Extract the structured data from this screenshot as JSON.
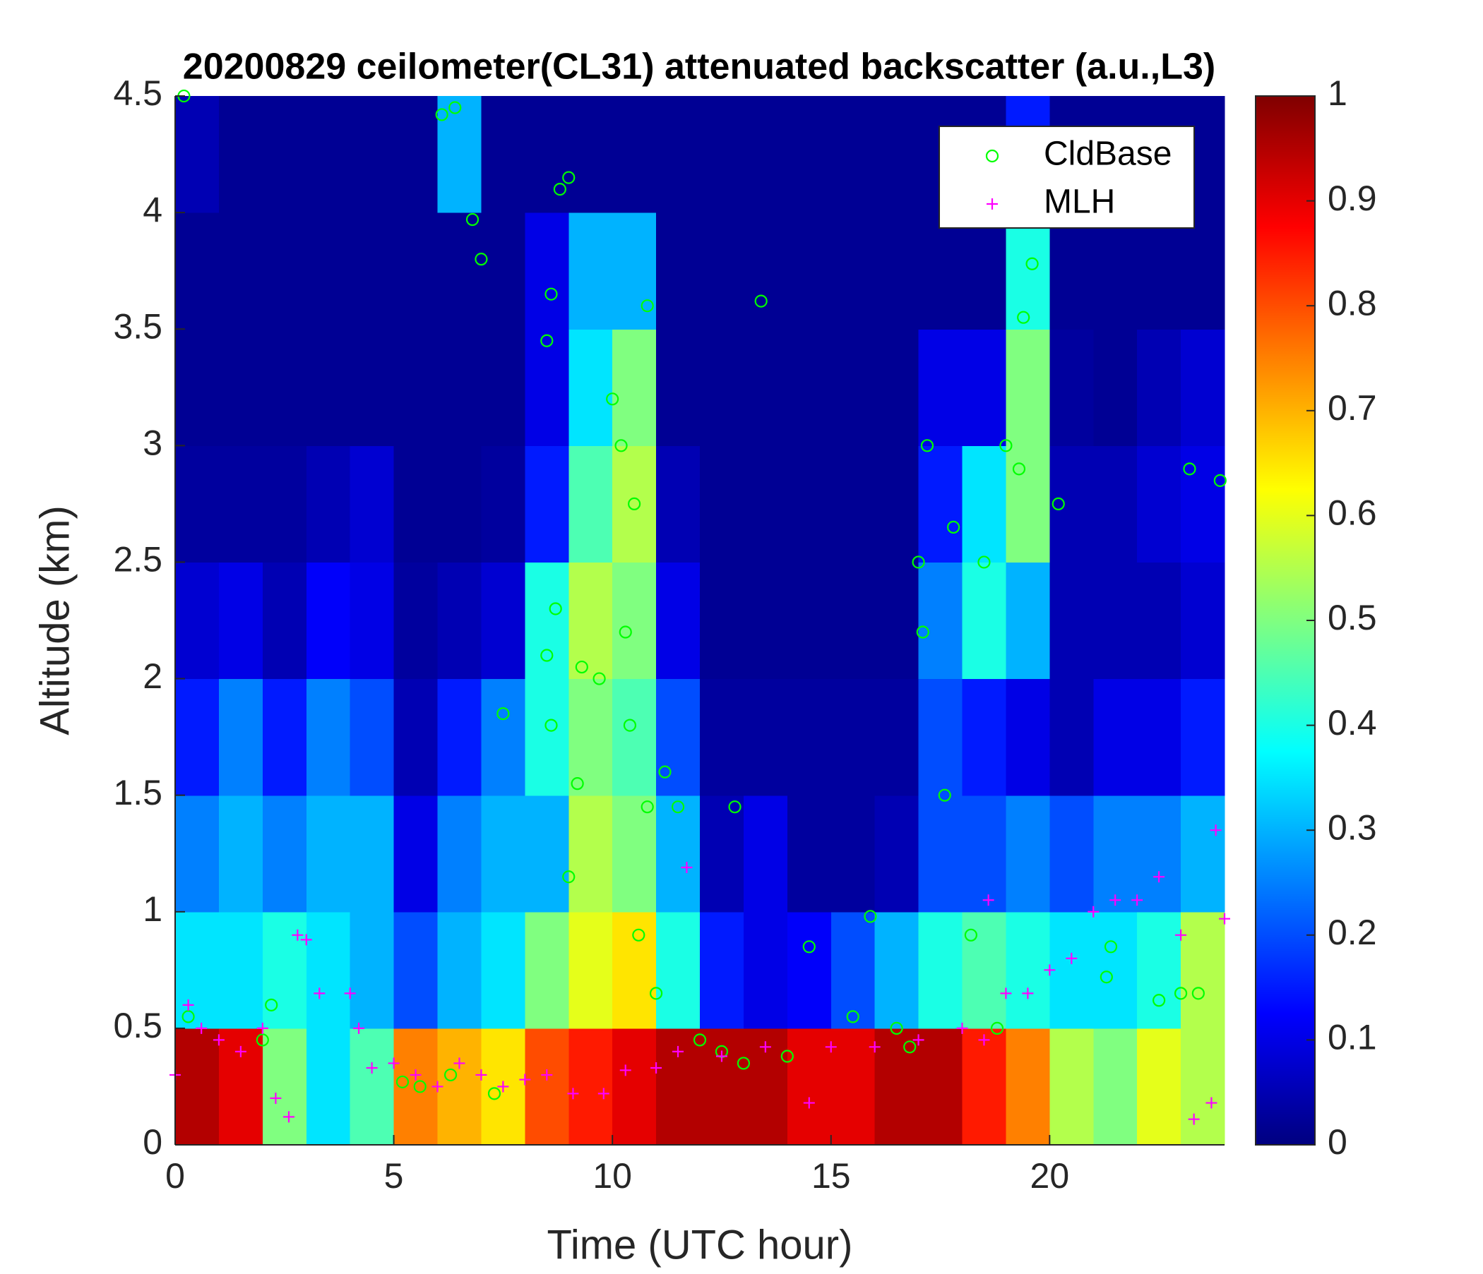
{
  "chart_data": {
    "type": "heatmap",
    "title": "20200829 ceilometer(CL31) attenuated backscatter (a.u.,L3)",
    "x_label": "Time (UTC hour)",
    "y_label": "Altitude (km)",
    "xlim": [
      0,
      24
    ],
    "xticks": [
      0,
      5,
      10,
      15,
      20
    ],
    "ylim": [
      0,
      4.5
    ],
    "yticks": [
      0,
      0.5,
      1,
      1.5,
      2,
      2.5,
      3,
      3.5,
      4,
      4.5
    ],
    "colormap": "jet",
    "clim": [
      0,
      1
    ],
    "cticks": [
      0,
      0.1,
      0.2,
      0.3,
      0.4,
      0.5,
      0.6,
      0.7,
      0.8,
      0.9,
      1
    ],
    "xbins": [
      0,
      1,
      2,
      3,
      4,
      5,
      6,
      7,
      8,
      9,
      10,
      11,
      12,
      13,
      14,
      15,
      16,
      17,
      18,
      19,
      20,
      21,
      22,
      23,
      24
    ],
    "ybins": [
      0,
      0.5,
      1,
      1.5,
      2,
      2.5,
      3,
      3.5,
      4,
      4.5
    ],
    "z": [
      [
        0.95,
        0.9,
        0.5,
        0.35,
        0.45,
        0.75,
        0.7,
        0.65,
        0.8,
        0.85,
        0.9,
        0.95,
        0.95,
        0.95,
        0.9,
        0.9,
        0.95,
        0.95,
        0.85,
        0.75,
        0.55,
        0.5,
        0.6,
        0.55
      ],
      [
        0.35,
        0.35,
        0.4,
        0.35,
        0.3,
        0.2,
        0.3,
        0.35,
        0.5,
        0.6,
        0.65,
        0.4,
        0.15,
        0.1,
        0.12,
        0.2,
        0.3,
        0.4,
        0.45,
        0.4,
        0.35,
        0.35,
        0.4,
        0.55
      ],
      [
        0.25,
        0.3,
        0.25,
        0.3,
        0.3,
        0.1,
        0.25,
        0.3,
        0.3,
        0.55,
        0.5,
        0.3,
        0.05,
        0.1,
        0.03,
        0.03,
        0.05,
        0.2,
        0.2,
        0.25,
        0.2,
        0.25,
        0.25,
        0.3
      ],
      [
        0.15,
        0.25,
        0.15,
        0.25,
        0.2,
        0.05,
        0.15,
        0.25,
        0.4,
        0.5,
        0.45,
        0.2,
        0.03,
        0.03,
        0.03,
        0.03,
        0.03,
        0.2,
        0.15,
        0.1,
        0.05,
        0.1,
        0.1,
        0.15
      ],
      [
        0.08,
        0.1,
        0.05,
        0.12,
        0.1,
        0.03,
        0.05,
        0.08,
        0.4,
        0.55,
        0.5,
        0.1,
        0.02,
        0.02,
        0.02,
        0.02,
        0.02,
        0.25,
        0.4,
        0.3,
        0.05,
        0.05,
        0.05,
        0.08
      ],
      [
        0.03,
        0.03,
        0.03,
        0.05,
        0.08,
        0.02,
        0.02,
        0.03,
        0.15,
        0.45,
        0.55,
        0.05,
        0.02,
        0.02,
        0.02,
        0.02,
        0.02,
        0.15,
        0.35,
        0.5,
        0.05,
        0.05,
        0.08,
        0.1
      ],
      [
        0.02,
        0.02,
        0.02,
        0.02,
        0.02,
        0.02,
        0.02,
        0.02,
        0.1,
        0.35,
        0.5,
        0.02,
        0.02,
        0.02,
        0.02,
        0.02,
        0.02,
        0.1,
        0.1,
        0.5,
        0.03,
        0.02,
        0.05,
        0.08
      ],
      [
        0.02,
        0.02,
        0.02,
        0.02,
        0.02,
        0.02,
        0.02,
        0.02,
        0.1,
        0.3,
        0.3,
        0.02,
        0.02,
        0.02,
        0.02,
        0.02,
        0.02,
        0.02,
        0.02,
        0.4,
        0.02,
        0.02,
        0.02,
        0.02
      ],
      [
        0.05,
        0.02,
        0.02,
        0.02,
        0.02,
        0.02,
        0.3,
        0.02,
        0.02,
        0.02,
        0.02,
        0.02,
        0.02,
        0.02,
        0.02,
        0.02,
        0.02,
        0.02,
        0.02,
        0.15,
        0.02,
        0.02,
        0.02,
        0.02
      ]
    ],
    "legend": "upper right",
    "series": [
      {
        "name": "CldBase",
        "type": "scatter",
        "marker": "circle",
        "color": "#00ff00",
        "x": [
          0.2,
          6.1,
          6.4,
          6.8,
          7.0,
          8.6,
          8.8,
          9.0,
          8.5,
          8.7,
          8.5,
          7.5,
          8.6,
          9.3,
          9.7,
          9.2,
          9.0,
          10.0,
          10.2,
          10.5,
          10.8,
          10.3,
          10.4,
          10.8,
          11.2,
          11.5,
          10.6,
          11.0,
          12.5,
          13.0,
          13.4,
          12.8,
          14.0,
          14.5,
          15.5,
          15.9,
          16.5,
          17.0,
          17.2,
          17.1,
          17.6,
          17.8,
          18.5,
          18.2,
          19.0,
          19.3,
          19.4,
          19.6,
          20.2,
          18.8,
          21.4,
          21.3,
          22.5,
          23.0,
          23.4,
          23.2,
          23.9,
          5.2,
          5.6,
          6.3,
          7.3,
          2.0,
          2.2,
          0.3,
          12.0,
          16.8
        ],
        "values": [
          4.5,
          4.42,
          4.45,
          3.97,
          3.8,
          3.65,
          4.1,
          4.15,
          3.45,
          2.3,
          2.1,
          1.85,
          1.8,
          2.05,
          2.0,
          1.55,
          1.15,
          3.2,
          3.0,
          2.75,
          3.6,
          2.2,
          1.8,
          1.45,
          1.6,
          1.45,
          0.9,
          0.65,
          0.4,
          0.35,
          3.62,
          1.45,
          0.38,
          0.85,
          0.55,
          0.98,
          0.5,
          2.5,
          3.0,
          2.2,
          1.5,
          2.65,
          2.5,
          0.9,
          3.0,
          2.9,
          3.55,
          3.78,
          2.75,
          0.5,
          0.85,
          0.72,
          0.62,
          0.65,
          0.65,
          2.9,
          2.85,
          0.27,
          0.25,
          0.3,
          0.22,
          0.45,
          0.6,
          0.55,
          0.45,
          0.42
        ]
      },
      {
        "name": "MLH",
        "type": "scatter",
        "marker": "plus",
        "color": "#ff00ff",
        "x": [
          0,
          0.3,
          0.6,
          1.0,
          1.5,
          2.0,
          2.3,
          2.6,
          2.8,
          3.0,
          3.3,
          4.0,
          4.2,
          4.5,
          5.0,
          5.5,
          6.0,
          6.5,
          7.0,
          7.5,
          8.0,
          8.5,
          9.1,
          9.8,
          10.3,
          11.0,
          11.5,
          11.7,
          12.5,
          13.5,
          14.5,
          15.0,
          16.0,
          17.0,
          18.0,
          18.5,
          18.6,
          19.0,
          19.5,
          20.0,
          20.5,
          21.0,
          21.5,
          22.0,
          22.5,
          23.0,
          23.3,
          23.7,
          23.8,
          24.0
        ],
        "values": [
          0.3,
          0.6,
          0.5,
          0.45,
          0.4,
          0.5,
          0.2,
          0.12,
          0.9,
          0.88,
          0.65,
          0.65,
          0.5,
          0.33,
          0.35,
          0.3,
          0.25,
          0.35,
          0.3,
          0.25,
          0.28,
          0.3,
          0.22,
          0.22,
          0.32,
          0.33,
          0.4,
          1.19,
          0.38,
          0.42,
          0.18,
          0.42,
          0.42,
          0.45,
          0.5,
          0.45,
          1.05,
          0.65,
          0.65,
          0.75,
          0.8,
          1.0,
          1.05,
          1.05,
          1.15,
          0.9,
          0.11,
          0.18,
          1.35,
          0.97
        ]
      }
    ]
  }
}
